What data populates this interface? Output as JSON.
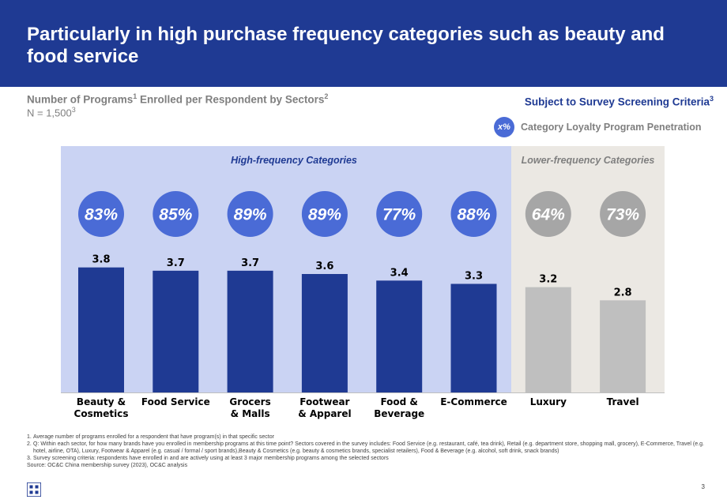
{
  "header": {
    "title": "Particularly in high purchase frequency categories such as beauty and food service"
  },
  "subtitle": {
    "text": "Number of Programs",
    "sup1": "1",
    "text2": " Enrolled per Respondent by Sectors",
    "sup2": "2",
    "n_text": "N = 1,500",
    "n_sup": "3"
  },
  "criteria": {
    "text": "Subject to Survey Screening Criteria",
    "sup": "3"
  },
  "legend": {
    "symbol": "x%",
    "label": "Category Loyalty Program Penetration"
  },
  "panels": {
    "high": "High-frequency Categories",
    "low": "Lower-frequency Categories"
  },
  "colors": {
    "high_bar": "#1f3a93",
    "low_bar": "#bfbfbf",
    "high_circle": "#4a6bd6",
    "low_circle": "#a6a6a6"
  },
  "chart_data": {
    "type": "bar",
    "title": "Number of Programs Enrolled per Respondent by Sectors",
    "categories": [
      "Beauty &\nCosmetics",
      "Food Service",
      "Grocers\n& Malls",
      "Footwear\n& Apparel",
      "Food &\nBeverage",
      "E-Commerce",
      "Luxury",
      "Travel"
    ],
    "values": [
      3.8,
      3.7,
      3.7,
      3.6,
      3.4,
      3.3,
      3.2,
      2.8
    ],
    "value_labels": [
      "3.8",
      "3.7",
      "3.7",
      "3.6",
      "3.4",
      "3.3",
      "3.2",
      "2.8"
    ],
    "penetration": [
      "83%",
      "85%",
      "89%",
      "89%",
      "77%",
      "88%",
      "64%",
      "73%"
    ],
    "group": [
      "high",
      "high",
      "high",
      "high",
      "high",
      "high",
      "low",
      "low"
    ],
    "ylim": [
      0,
      4.8
    ],
    "xlabel": "",
    "ylabel": ""
  },
  "footnotes": [
    {
      "num": "1.",
      "text": "Average number of programs enrolled for a respondent that have program(s) in that specific sector"
    },
    {
      "num": "2.",
      "text": "Q: Within each sector, for how many brands have you enrolled in membership programs at this time point? Sectors covered in the survey includes: Food Service (e.g. restaurant, café, tea drink), Retail (e.g. department store, shopping mall, grocery), E-Commerce, Travel (e.g. hotel, airline, OTA), Luxury, Footwear & Apparel (e.g. casual / formal / sport brands),Beauty & Cosmetics (e.g. beauty & cosmetics brands, specialist retailers), Food & Beverage (e.g. alcohol, soft drink, snack brands)"
    },
    {
      "num": "3.",
      "text": "Survey screening criteria: respondents have enrolled in and are actively using at least 3 major membership programs among the selected sectors"
    }
  ],
  "source": "Source: OC&C China membership survey (2023), OC&C analysis",
  "page_number": "3"
}
